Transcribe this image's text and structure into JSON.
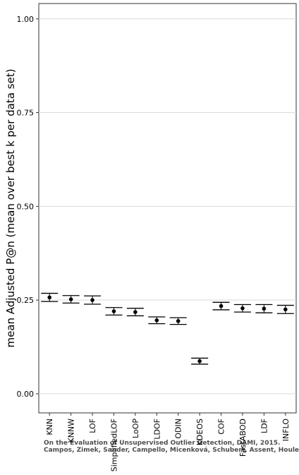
{
  "chart_data": {
    "type": "errorbar",
    "ylabel": "mean Adjusted P@n (mean over best k per data set)",
    "categories": [
      "KNN",
      "KNNW",
      "LOF",
      "SimplifiedLOF",
      "LoOP",
      "LDOF",
      "ODIN",
      "KDEOS",
      "COF",
      "FastABOD",
      "LDF",
      "INFLO"
    ],
    "values": [
      0.257,
      0.252,
      0.25,
      0.22,
      0.218,
      0.196,
      0.194,
      0.087,
      0.234,
      0.228,
      0.227,
      0.225
    ],
    "errors": [
      0.011,
      0.01,
      0.011,
      0.01,
      0.01,
      0.009,
      0.009,
      0.008,
      0.01,
      0.01,
      0.011,
      0.011
    ],
    "color": "#000000",
    "ylim": [
      -0.051,
      1.041
    ],
    "yticks": [
      {
        "value": 0,
        "label": "0.00"
      },
      {
        "value": 0.25,
        "label": "0.25"
      },
      {
        "value": 0.5,
        "label": "0.50"
      },
      {
        "value": 0.75,
        "label": "0.75"
      },
      {
        "value": 1,
        "label": "1.00"
      }
    ],
    "grid": true,
    "watermark": [
      "On the Evaluation of Unsupervised Outlier Detection, DAMI, 2015.",
      "Campos, Zimek, Sander, Campello, Micenková, Schubert, Assent, Houle"
    ]
  }
}
